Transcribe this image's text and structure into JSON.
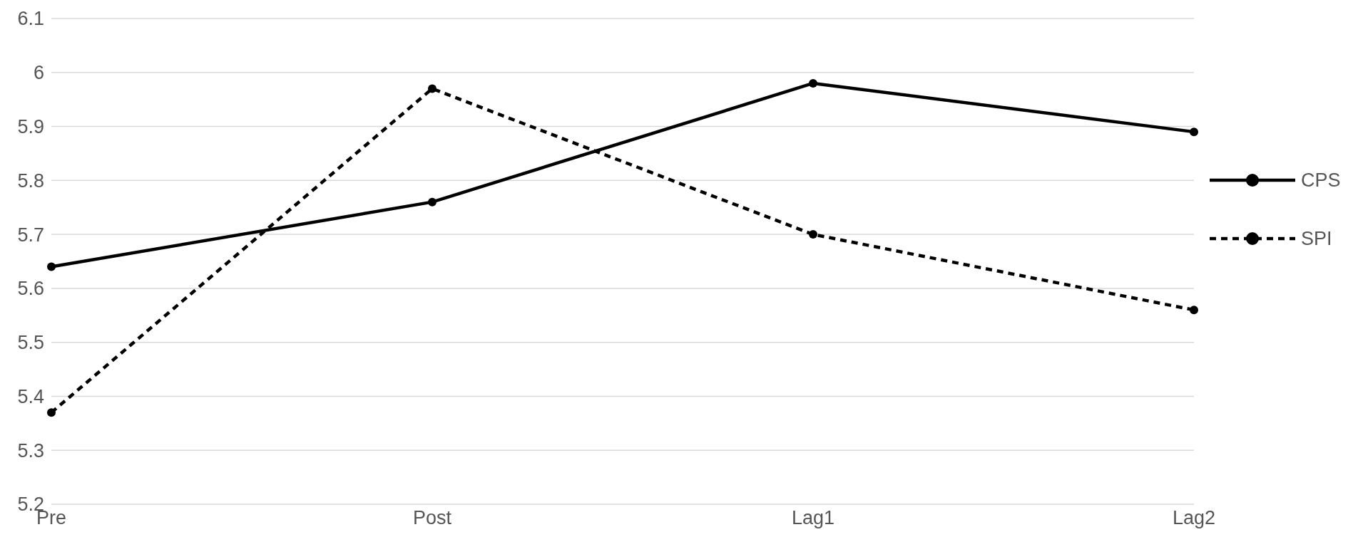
{
  "chart_data": {
    "type": "line",
    "categories": [
      "Pre",
      "Post",
      "Lag1",
      "Lag2"
    ],
    "series": [
      {
        "name": "CPS",
        "color": "#000000",
        "values": [
          5.64,
          5.76,
          5.98,
          5.89
        ],
        "line_style": "solid"
      },
      {
        "name": "SPI",
        "color": "#000000",
        "values": [
          5.37,
          5.97,
          5.7,
          5.56
        ],
        "line_style": "dashed"
      }
    ],
    "ylim": [
      5.2,
      6.1
    ],
    "yticks": [
      5.2,
      5.3,
      5.4,
      5.5,
      5.6,
      5.7,
      5.8,
      5.9,
      6,
      6.1
    ],
    "grid": "y",
    "legend": "right",
    "marker": "circle"
  }
}
